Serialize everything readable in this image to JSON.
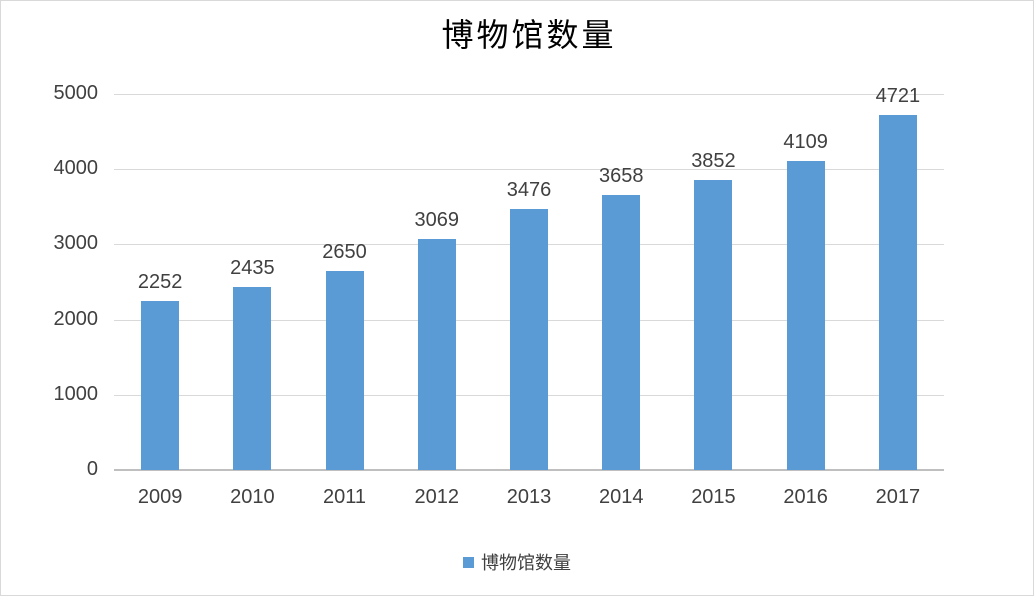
{
  "chart_data": {
    "type": "bar",
    "title": "博物馆数量",
    "categories": [
      "2009",
      "2010",
      "2011",
      "2012",
      "2013",
      "2014",
      "2015",
      "2016",
      "2017"
    ],
    "series": [
      {
        "name": "博物馆数量",
        "values": [
          2252,
          2435,
          2650,
          3069,
          3476,
          3658,
          3852,
          4109,
          4721
        ]
      }
    ],
    "data_labels": true,
    "xlabel": "",
    "ylabel": "",
    "ylim": [
      0,
      5000
    ],
    "yticks": [
      0,
      1000,
      2000,
      3000,
      4000,
      5000
    ],
    "grid": true,
    "legend_position": "bottom",
    "colors": {
      "bar": "#5B9BD5",
      "gridline": "#D9D9D9",
      "axis_line": "#BFBFBF",
      "text": "#404040",
      "title_text": "#000000",
      "background": "#FFFFFF",
      "frame_border": "#D9D9D9"
    }
  }
}
